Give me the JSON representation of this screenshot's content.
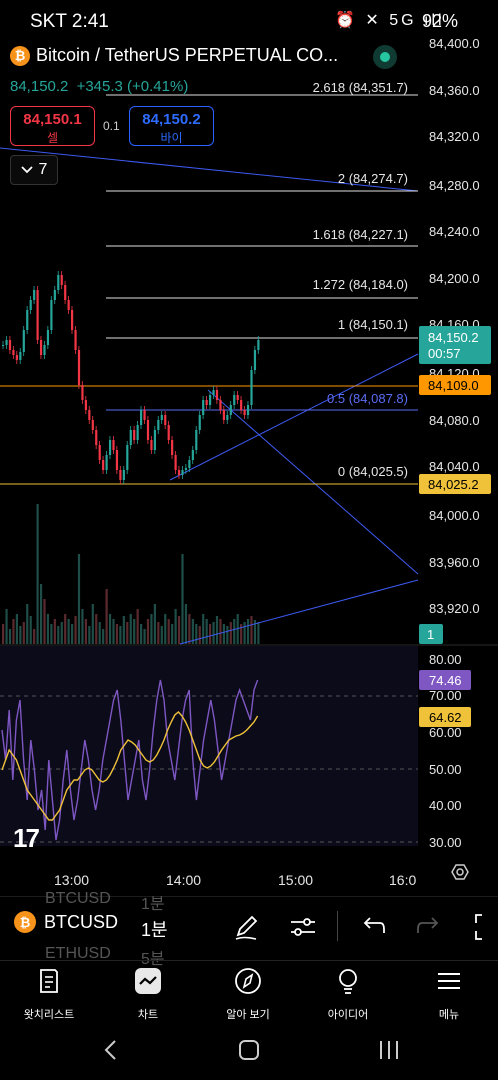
{
  "status_bar": {
    "time": "SKT 2:41",
    "icons": "⏰ ✕ 5G ıll",
    "battery": "92%"
  },
  "header": {
    "title": "Bitcoin / TetherUS PERPETUAL CO...",
    "last_price": "84,150.2",
    "change": "+345.3 (+0.41%)",
    "sell_price": "84,150.1",
    "sell_label": "셀",
    "spread": "0.1",
    "buy_price": "84,150.2",
    "buy_label": "바이",
    "collapse_count": "7"
  },
  "price_axis": {
    "ticks": [
      "84,400.0",
      "84,360.0",
      "84,320.0",
      "84,280.0",
      "84,240.0",
      "84,200.0",
      "84,160.0",
      "84,120.0",
      "84,080.0",
      "84,040.0",
      "84,000.0",
      "83,960.0",
      "83,920.0"
    ],
    "last_price_tag": "84,150.2",
    "countdown": "00:57",
    "orange_tag": "84,109.0",
    "yellow_tag": "84,025.2",
    "volume_tag": "1"
  },
  "fib_levels": [
    {
      "label": "2.618 (84,351.7)"
    },
    {
      "label": "2 (84,274.7)"
    },
    {
      "label": "1.618 (84,227.1)"
    },
    {
      "label": "1.272 (84,184.0)"
    },
    {
      "label": "1 (84,150.1)"
    },
    {
      "label": "0.5 (84,087.8)"
    },
    {
      "label": "0 (84,025.5)"
    }
  ],
  "rsi_axis": {
    "ticks": [
      "80.00",
      "70.00",
      "60.00",
      "50.00",
      "40.00",
      "30.00"
    ],
    "rsi_tag": "74.46",
    "ma_tag": "64.62"
  },
  "time_axis": [
    "13:00",
    "14:00",
    "15:00",
    "16:0"
  ],
  "toolbar": {
    "symbol": "BTCUSD",
    "interval": "1분",
    "ghost_above_symbol": "BTCUSD",
    "ghost_above_interval": "1분",
    "ghost_below_symbol": "ETHUSD",
    "ghost_below_interval": "5분"
  },
  "nav": [
    "왓치리스트",
    "차트",
    "알아 보기",
    "아이디어",
    "메뉴"
  ],
  "colors": {
    "up": "#26a69a",
    "down": "#f23645",
    "orange": "#ff9800",
    "yellow": "#f0c23a",
    "blue": "#2962ff",
    "rsi": "#7e57c2"
  }
}
